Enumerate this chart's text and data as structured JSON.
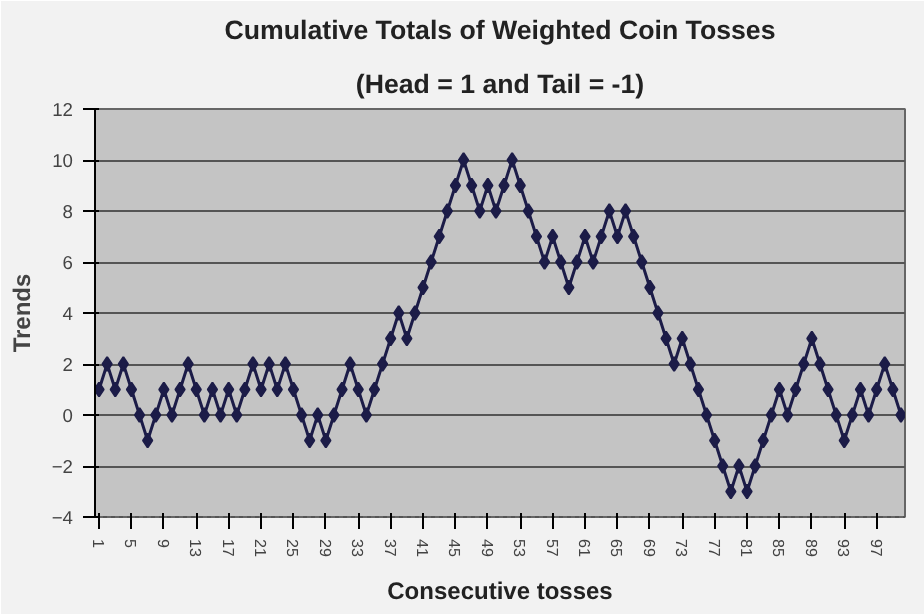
{
  "chart_data": {
    "type": "line",
    "title": "Cumulative Totals of Weighted Coin Tosses",
    "subtitle": "(Head = 1 and Tail = -1)",
    "xlabel": "Consecutive tosses",
    "ylabel": "Trends",
    "categories": [
      "1",
      null,
      null,
      null,
      "5",
      null,
      null,
      null,
      "9",
      null,
      null,
      null,
      "13",
      null,
      null,
      null,
      "17",
      null,
      null,
      null,
      "21",
      null,
      null,
      null,
      "25",
      null,
      null,
      null,
      "29",
      null,
      null,
      null,
      "33",
      null,
      null,
      null,
      "37",
      null,
      null,
      null,
      "41",
      null,
      null,
      null,
      "45",
      null,
      null,
      null,
      "49",
      null,
      null,
      null,
      "53",
      null,
      null,
      null,
      "57",
      null,
      null,
      null,
      "61",
      null,
      null,
      null,
      "65",
      null,
      null,
      null,
      "69",
      null,
      null,
      null,
      "73",
      null,
      null,
      null,
      "77",
      null,
      null,
      null,
      "81",
      null,
      null,
      null,
      "85",
      null,
      null,
      null,
      "89",
      null,
      null,
      null,
      "93",
      null,
      null,
      null,
      "97",
      null,
      null,
      null
    ],
    "series": [
      {
        "color": "#1c1c48",
        "values": [
          1,
          2,
          1,
          2,
          1,
          0,
          -1,
          0,
          1,
          0,
          1,
          2,
          1,
          0,
          1,
          0,
          1,
          0,
          1,
          2,
          1,
          2,
          1,
          2,
          1,
          0,
          -1,
          0,
          -1,
          0,
          1,
          2,
          1,
          0,
          1,
          2,
          3,
          4,
          3,
          4,
          5,
          6,
          7,
          8,
          9,
          10,
          9,
          8,
          9,
          8,
          9,
          10,
          9,
          8,
          7,
          6,
          7,
          6,
          5,
          6,
          7,
          6,
          7,
          8,
          7,
          8,
          7,
          6,
          5,
          4,
          3,
          2,
          3,
          2,
          1,
          0,
          -1,
          -2,
          -3,
          -2,
          -3,
          -2,
          -1,
          0,
          1,
          0,
          1,
          2,
          3,
          2,
          1,
          0,
          -1,
          0,
          1,
          0,
          1,
          2,
          1,
          0
        ]
      }
    ],
    "ylim": [
      -4,
      12
    ],
    "yticks": [
      -4,
      -2,
      0,
      2,
      4,
      6,
      8,
      10,
      12
    ],
    "grid": "y",
    "marker": "diamond",
    "line_style": "solid"
  }
}
